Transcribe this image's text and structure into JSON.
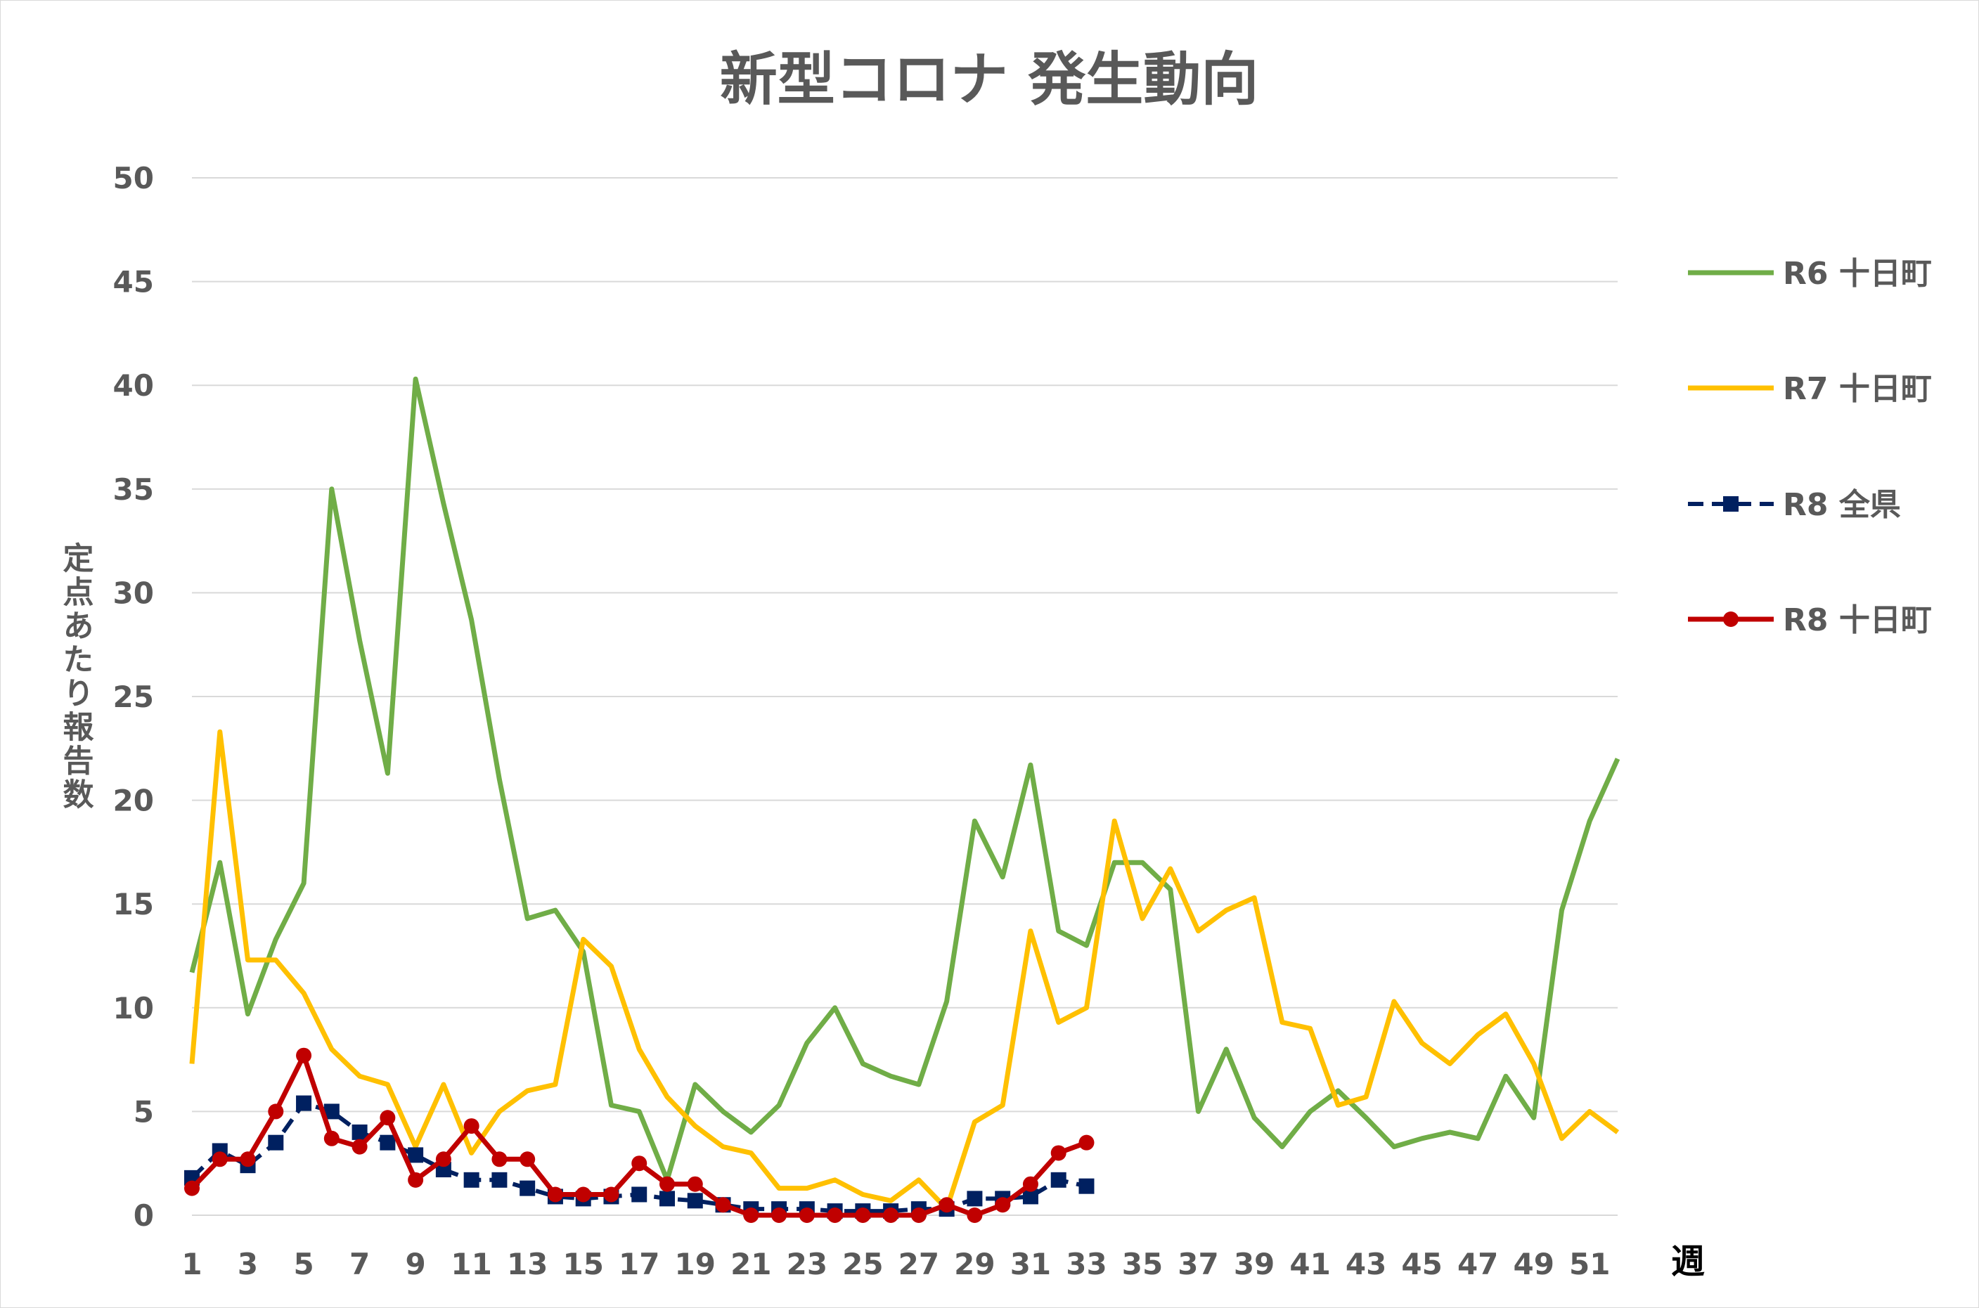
{
  "chart_data": {
    "type": "line",
    "title": "新型コロナ 発生動向",
    "ylabel": "定点あたり報告数",
    "xlabel": "週",
    "ylim": [
      0,
      50
    ],
    "yticks": [
      0,
      5,
      10,
      15,
      20,
      25,
      30,
      35,
      40,
      45,
      50
    ],
    "xlim": [
      1,
      52
    ],
    "xticks": [
      1,
      3,
      5,
      7,
      9,
      11,
      13,
      15,
      17,
      19,
      21,
      23,
      25,
      27,
      29,
      31,
      33,
      35,
      37,
      39,
      41,
      43,
      45,
      47,
      49,
      51
    ],
    "grid": "horizontal",
    "legend_position": "right",
    "series": [
      {
        "name": "R6 十日町",
        "color": "#70ad47",
        "style": "solid",
        "marker": "none",
        "x": [
          1,
          2,
          3,
          4,
          5,
          6,
          7,
          8,
          9,
          10,
          11,
          12,
          13,
          14,
          15,
          16,
          17,
          18,
          19,
          20,
          21,
          22,
          23,
          24,
          25,
          26,
          27,
          28,
          29,
          30,
          31,
          32,
          33,
          34,
          35,
          36,
          37,
          38,
          39,
          40,
          41,
          42,
          43,
          44,
          45,
          46,
          47,
          48,
          49,
          50,
          51,
          52
        ],
        "values": [
          11.7,
          17.0,
          9.7,
          13.3,
          16.0,
          35.0,
          27.7,
          21.3,
          40.3,
          34.3,
          28.7,
          21.0,
          14.3,
          14.7,
          12.7,
          5.3,
          5.0,
          1.7,
          6.3,
          5.0,
          4.0,
          5.3,
          8.3,
          10.0,
          7.3,
          6.7,
          6.3,
          10.3,
          19.0,
          16.3,
          21.7,
          13.7,
          13.0,
          17.0,
          17.0,
          15.7,
          5.0,
          8.0,
          4.7,
          3.3,
          5.0,
          6.0,
          4.7,
          3.3,
          3.7,
          4.0,
          3.7,
          6.7,
          4.7,
          14.7,
          19.0,
          22.0
        ]
      },
      {
        "name": "R7 十日町",
        "color": "#ffc000",
        "style": "solid",
        "marker": "none",
        "x": [
          1,
          2,
          3,
          4,
          5,
          6,
          7,
          8,
          9,
          10,
          11,
          12,
          13,
          14,
          15,
          16,
          17,
          18,
          19,
          20,
          21,
          22,
          23,
          24,
          25,
          26,
          27,
          28,
          29,
          30,
          31,
          32,
          33,
          34,
          35,
          36,
          37,
          38,
          39,
          40,
          41,
          42,
          43,
          44,
          45,
          46,
          47,
          48,
          49,
          50,
          51,
          52
        ],
        "values": [
          7.3,
          23.3,
          12.3,
          12.3,
          10.7,
          8.0,
          6.7,
          6.3,
          3.3,
          6.3,
          3.0,
          5.0,
          6.0,
          6.3,
          13.3,
          12.0,
          8.0,
          5.7,
          4.3,
          3.3,
          3.0,
          1.3,
          1.3,
          1.7,
          1.0,
          0.7,
          1.7,
          0.3,
          4.5,
          5.3,
          13.7,
          9.3,
          10.0,
          19.0,
          14.3,
          16.7,
          13.7,
          14.7,
          15.3,
          9.3,
          9.0,
          5.3,
          5.7,
          10.3,
          8.3,
          7.3,
          8.7,
          9.7,
          7.3,
          3.7,
          5.0,
          4.0
        ]
      },
      {
        "name": "R8 全県",
        "color": "#002060",
        "style": "dashed",
        "marker": "square",
        "x": [
          1,
          2,
          3,
          4,
          5,
          6,
          7,
          8,
          9,
          10,
          11,
          12,
          13,
          14,
          15,
          16,
          17,
          18,
          19,
          20,
          21,
          22,
          23,
          24,
          25,
          26,
          27,
          28,
          29,
          30,
          31,
          32,
          33
        ],
        "values": [
          1.8,
          3.1,
          2.4,
          3.5,
          5.4,
          5.0,
          4.0,
          3.5,
          2.9,
          2.2,
          1.7,
          1.7,
          1.3,
          0.9,
          0.8,
          0.9,
          1.0,
          0.8,
          0.7,
          0.5,
          0.3,
          0.3,
          0.3,
          0.2,
          0.2,
          0.2,
          0.3,
          0.3,
          0.8,
          0.8,
          0.9,
          1.7,
          1.4
        ]
      },
      {
        "name": "R8 十日町",
        "color": "#c00000",
        "style": "solid",
        "marker": "circle",
        "x": [
          1,
          2,
          3,
          4,
          5,
          6,
          7,
          8,
          9,
          10,
          11,
          12,
          13,
          14,
          15,
          16,
          17,
          18,
          19,
          20,
          21,
          22,
          23,
          24,
          25,
          26,
          27,
          28,
          29,
          30,
          31,
          32,
          33
        ],
        "values": [
          1.3,
          2.7,
          2.7,
          5.0,
          7.7,
          3.7,
          3.3,
          4.7,
          1.7,
          2.7,
          4.3,
          2.7,
          2.7,
          1.0,
          1.0,
          1.0,
          2.5,
          1.5,
          1.5,
          0.5,
          0.0,
          0.0,
          0.0,
          0.0,
          0.0,
          0.0,
          0.0,
          0.5,
          0.0,
          0.5,
          1.5,
          3.0,
          3.5
        ]
      }
    ]
  }
}
